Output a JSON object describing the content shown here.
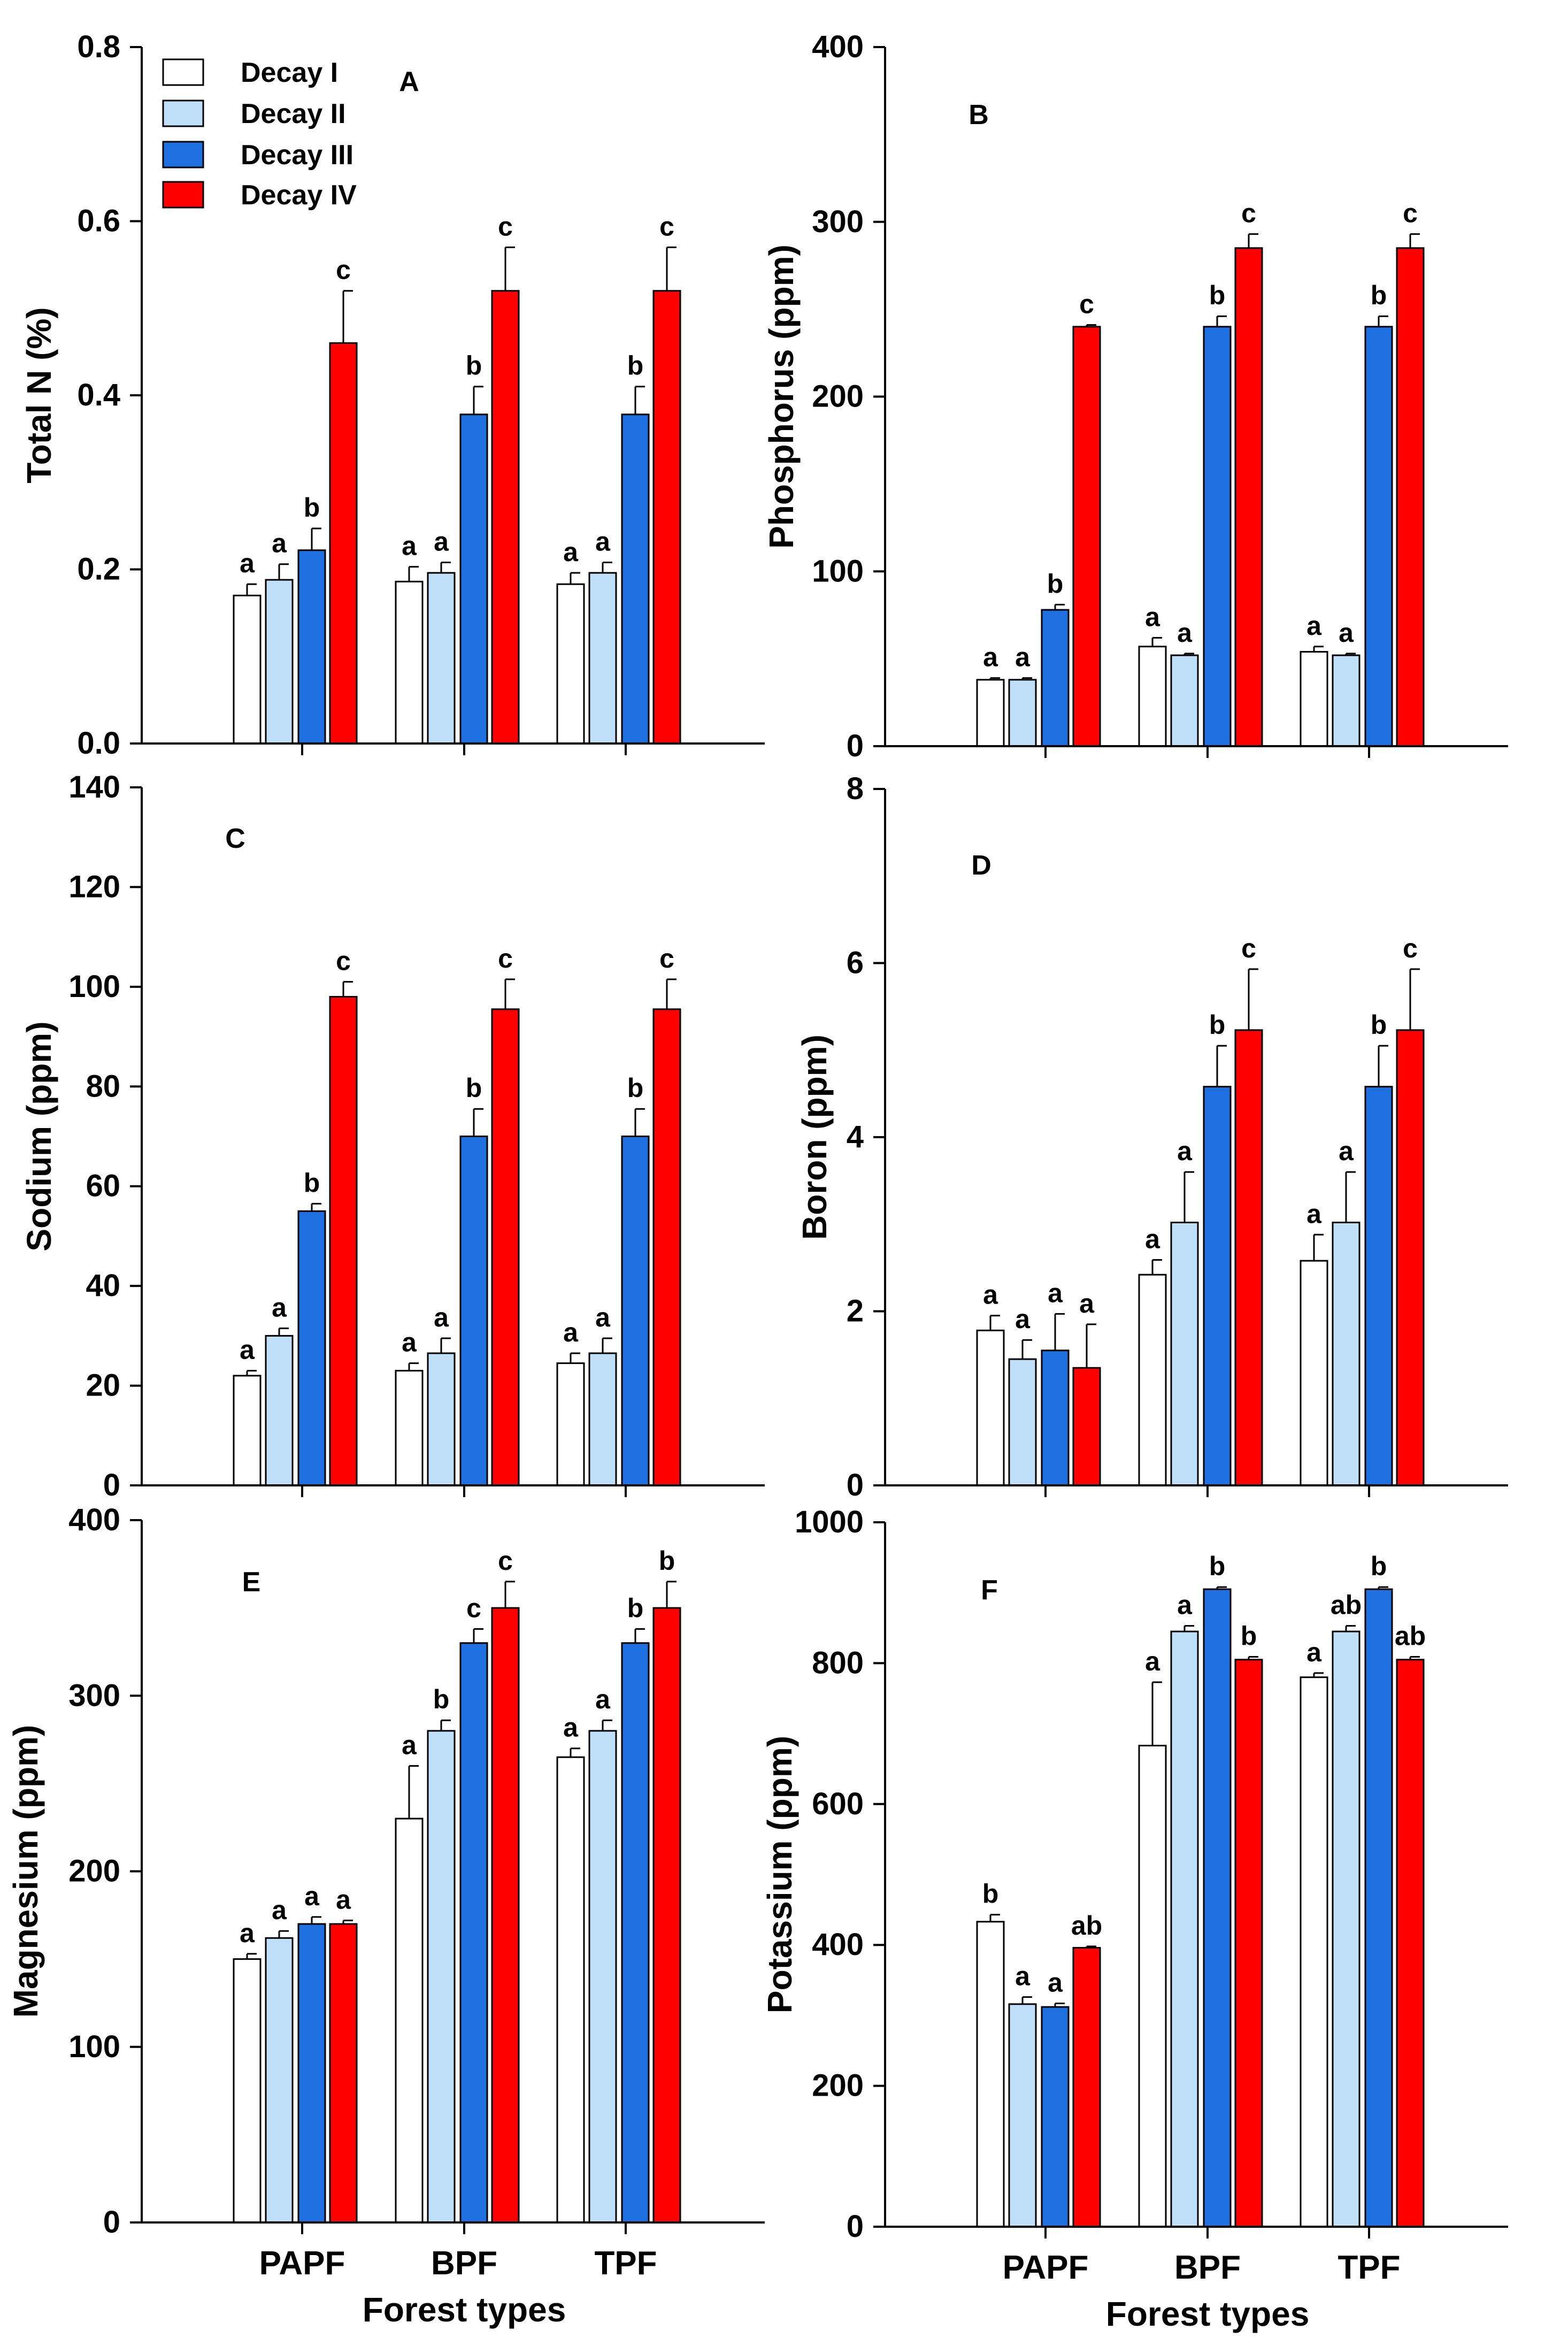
{
  "colors": {
    "Decay I": "#ffffff",
    "Decay II": "#bfe0f8",
    "Decay III": "#1e6fe0",
    "Decay IV": "#ff0000",
    "axis": "#000000"
  },
  "legend": {
    "entries": [
      "Decay I",
      "Decay II",
      "Decay III",
      "Decay IV"
    ]
  },
  "xlabel": "Forest types",
  "chart_data": [
    {
      "type": "bar",
      "panel": "A",
      "ylabel": "Total N (%)",
      "ylim": [
        0,
        0.8
      ],
      "yticks": [
        0.0,
        0.2,
        0.4,
        0.6,
        0.8
      ],
      "ytick_labels": [
        "0.0",
        "0.2",
        "0.4",
        "0.6",
        "0.8"
      ],
      "categories": [
        "PAPF",
        "BPF",
        "TPF"
      ],
      "show_xticks": false,
      "series": [
        {
          "name": "Decay I",
          "values": [
            0.17,
            0.186,
            0.183
          ],
          "errors": [
            0.013,
            0.017,
            0.013
          ],
          "letters": [
            "a",
            "a",
            "a"
          ]
        },
        {
          "name": "Decay II",
          "values": [
            0.188,
            0.196,
            0.196
          ],
          "errors": [
            0.018,
            0.012,
            0.012
          ],
          "letters": [
            "a",
            "a",
            "a"
          ]
        },
        {
          "name": "Decay III",
          "values": [
            0.222,
            0.378,
            0.378
          ],
          "errors": [
            0.025,
            0.032,
            0.032
          ],
          "letters": [
            "b",
            "b",
            "b"
          ]
        },
        {
          "name": "Decay IV",
          "values": [
            0.46,
            0.52,
            0.52
          ],
          "errors": [
            0.06,
            0.05,
            0.05
          ],
          "letters": [
            "c",
            "c",
            "c"
          ]
        }
      ]
    },
    {
      "type": "bar",
      "panel": "B",
      "ylabel": "Phosphorus (ppm)",
      "ylim": [
        0,
        400
      ],
      "yticks": [
        0,
        100,
        200,
        300,
        400
      ],
      "ytick_labels": [
        "0",
        "100",
        "200",
        "300",
        "400"
      ],
      "categories": [
        "PAPF",
        "BPF",
        "TPF"
      ],
      "show_xticks": false,
      "series": [
        {
          "name": "Decay I",
          "values": [
            38,
            57,
            54
          ],
          "errors": [
            1,
            5,
            3
          ],
          "letters": [
            "a",
            "a",
            "a"
          ]
        },
        {
          "name": "Decay II",
          "values": [
            38,
            52,
            52
          ],
          "errors": [
            1,
            1,
            1
          ],
          "letters": [
            "a",
            "a",
            "a"
          ]
        },
        {
          "name": "Decay III",
          "values": [
            78,
            240,
            240
          ],
          "errors": [
            3,
            6,
            6
          ],
          "letters": [
            "b",
            "b",
            "b"
          ]
        },
        {
          "name": "Decay IV",
          "values": [
            240,
            285,
            285
          ],
          "errors": [
            1,
            8,
            8
          ],
          "letters": [
            "c",
            "c",
            "c"
          ]
        }
      ]
    },
    {
      "type": "bar",
      "panel": "C",
      "ylabel": "Sodium (ppm)",
      "ylim": [
        0,
        140
      ],
      "yticks": [
        0,
        20,
        40,
        60,
        80,
        100,
        120,
        140
      ],
      "ytick_labels": [
        "0",
        "20",
        "40",
        "60",
        "80",
        "100",
        "120",
        "140"
      ],
      "categories": [
        "PAPF",
        "BPF",
        "TPF"
      ],
      "show_xticks": false,
      "series": [
        {
          "name": "Decay I",
          "values": [
            22,
            23,
            24.5
          ],
          "errors": [
            1,
            1.5,
            2
          ],
          "letters": [
            "a",
            "a",
            "a"
          ]
        },
        {
          "name": "Decay II",
          "values": [
            30,
            26.5,
            26.5
          ],
          "errors": [
            1.5,
            3,
            3
          ],
          "letters": [
            "a",
            "a",
            "a"
          ]
        },
        {
          "name": "Decay III",
          "values": [
            55,
            70,
            70
          ],
          "errors": [
            1.5,
            5.5,
            5.5
          ],
          "letters": [
            "b",
            "b",
            "b"
          ]
        },
        {
          "name": "Decay IV",
          "values": [
            98,
            95.5,
            95.5
          ],
          "errors": [
            3,
            6,
            6
          ],
          "letters": [
            "c",
            "c",
            "c"
          ]
        }
      ]
    },
    {
      "type": "bar",
      "panel": "D",
      "ylabel": "Boron (ppm)",
      "ylim": [
        0,
        8
      ],
      "yticks": [
        0,
        2,
        4,
        6,
        8
      ],
      "ytick_labels": [
        "0",
        "2",
        "4",
        "6",
        "8"
      ],
      "categories": [
        "PAPF",
        "BPF",
        "TPF"
      ],
      "show_xticks": false,
      "series": [
        {
          "name": "Decay I",
          "values": [
            1.78,
            2.42,
            2.58
          ],
          "errors": [
            0.17,
            0.17,
            0.3
          ],
          "letters": [
            "a",
            "a",
            "a"
          ]
        },
        {
          "name": "Decay II",
          "values": [
            1.45,
            3.02,
            3.02
          ],
          "errors": [
            0.22,
            0.58,
            0.58
          ],
          "letters": [
            "a",
            "a",
            "a"
          ]
        },
        {
          "name": "Decay III",
          "values": [
            1.55,
            4.58,
            4.58
          ],
          "errors": [
            0.42,
            0.47,
            0.47
          ],
          "letters": [
            "a",
            "b",
            "b"
          ]
        },
        {
          "name": "Decay IV",
          "values": [
            1.35,
            5.23,
            5.23
          ],
          "errors": [
            0.5,
            0.7,
            0.7
          ],
          "letters": [
            "a",
            "c",
            "c"
          ]
        }
      ]
    },
    {
      "type": "bar",
      "panel": "E",
      "ylabel": "Magnesium (ppm)",
      "ylim": [
        0,
        400
      ],
      "yticks": [
        0,
        100,
        200,
        300,
        400
      ],
      "ytick_labels": [
        "0",
        "100",
        "200",
        "300",
        "400"
      ],
      "categories": [
        "PAPF",
        "BPF",
        "TPF"
      ],
      "show_xticks": true,
      "series": [
        {
          "name": "Decay I",
          "values": [
            150,
            230,
            265
          ],
          "errors": [
            3,
            30,
            5
          ],
          "letters": [
            "a",
            "a",
            "a"
          ]
        },
        {
          "name": "Decay II",
          "values": [
            162,
            280,
            280
          ],
          "errors": [
            4,
            6,
            6
          ],
          "letters": [
            "a",
            "b",
            "a"
          ]
        },
        {
          "name": "Decay III",
          "values": [
            170,
            330,
            330
          ],
          "errors": [
            4,
            8,
            8
          ],
          "letters": [
            "a",
            "c",
            "b"
          ]
        },
        {
          "name": "Decay IV",
          "values": [
            170,
            350,
            350
          ],
          "errors": [
            2,
            15,
            15
          ],
          "letters": [
            "a",
            "c",
            "b"
          ]
        }
      ]
    },
    {
      "type": "bar",
      "panel": "F",
      "ylabel": "Potassium (ppm)",
      "ylim": [
        0,
        1000
      ],
      "yticks": [
        0,
        200,
        400,
        600,
        800,
        1000
      ],
      "ytick_labels": [
        "0",
        "200",
        "400",
        "600",
        "800",
        "1000"
      ],
      "categories": [
        "PAPF",
        "BPF",
        "TPF"
      ],
      "show_xticks": true,
      "series": [
        {
          "name": "Decay I",
          "values": [
            433,
            683,
            780
          ],
          "errors": [
            10,
            90,
            6
          ],
          "letters": [
            "b",
            "a",
            "a"
          ]
        },
        {
          "name": "Decay II",
          "values": [
            316,
            845,
            845
          ],
          "errors": [
            10,
            8,
            8
          ],
          "letters": [
            "a",
            "a",
            "ab"
          ]
        },
        {
          "name": "Decay III",
          "values": [
            312,
            905,
            905
          ],
          "errors": [
            5,
            3,
            3
          ],
          "letters": [
            "a",
            "b",
            "b"
          ]
        },
        {
          "name": "Decay IV",
          "values": [
            396,
            805,
            805
          ],
          "errors": [
            2,
            4,
            4
          ],
          "letters": [
            "ab",
            "b",
            "ab"
          ]
        }
      ]
    }
  ]
}
